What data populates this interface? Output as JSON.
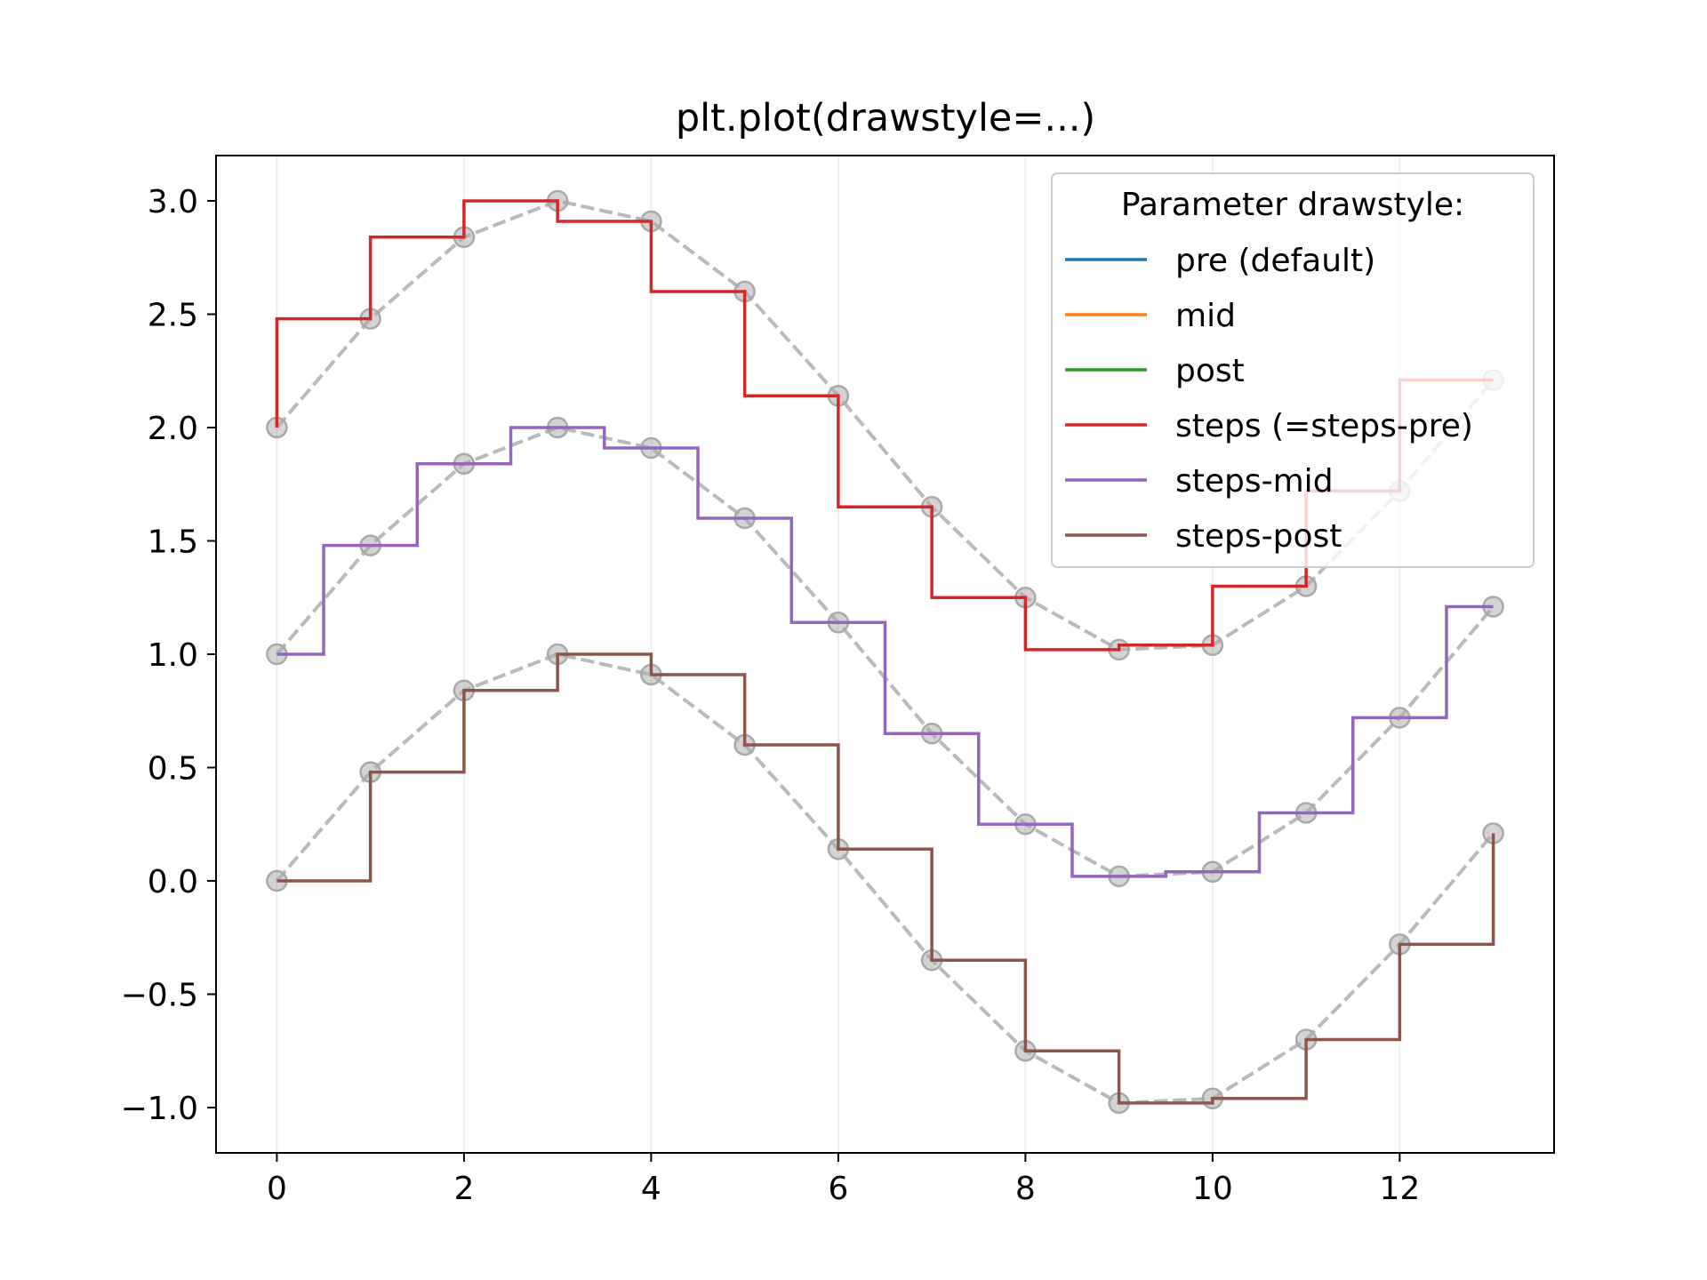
{
  "chart_data": {
    "type": "line",
    "title": "plt.plot(drawstyle=...)",
    "xlabel": "",
    "ylabel": "",
    "xlim": [
      -0.65,
      13.65
    ],
    "ylim": [
      -1.2,
      3.2
    ],
    "xticks": [
      0,
      2,
      4,
      6,
      8,
      10,
      12
    ],
    "xtick_labels": [
      "0",
      "2",
      "4",
      "6",
      "8",
      "10",
      "12"
    ],
    "yticks": [
      -1.0,
      -0.5,
      0.0,
      0.5,
      1.0,
      1.5,
      2.0,
      2.5,
      3.0
    ],
    "ytick_labels": [
      "−1.0",
      "−0.5",
      "0.0",
      "0.5",
      "1.0",
      "1.5",
      "2.0",
      "2.5",
      "3.0"
    ],
    "x_grid": true,
    "y_grid": false,
    "legend": {
      "title": "Parameter drawstyle:",
      "placement": "upper right",
      "entries": [
        {
          "label": "pre (default)",
          "color": "#1f77b4"
        },
        {
          "label": "mid",
          "color": "#ff7f0e"
        },
        {
          "label": "post",
          "color": "#2ca02c"
        },
        {
          "label": "steps (=steps-pre)",
          "color": "#d62728"
        },
        {
          "label": "steps-mid",
          "color": "#9467bd"
        },
        {
          "label": "steps-post",
          "color": "#8c564b"
        }
      ]
    },
    "x": [
      0,
      1,
      2,
      3,
      4,
      5,
      6,
      7,
      8,
      9,
      10,
      11,
      12,
      13
    ],
    "series": [
      {
        "drawstyle": "steps-pre",
        "color": "#d62728",
        "values": [
          2.0,
          2.48,
          2.84,
          3.0,
          2.91,
          2.6,
          2.14,
          1.65,
          1.25,
          1.02,
          1.04,
          1.3,
          1.72,
          2.21
        ]
      },
      {
        "drawstyle": "steps-mid",
        "color": "#9467bd",
        "values": [
          1.0,
          1.48,
          1.84,
          2.0,
          1.91,
          1.6,
          1.14,
          0.65,
          0.25,
          0.02,
          0.04,
          0.3,
          0.72,
          1.21
        ]
      },
      {
        "drawstyle": "steps-post",
        "color": "#8c564b",
        "values": [
          0.0,
          0.48,
          0.84,
          1.0,
          0.91,
          0.6,
          0.14,
          -0.35,
          -0.75,
          -0.98,
          -0.96,
          -0.7,
          -0.28,
          0.21
        ]
      }
    ],
    "reference_lines": {
      "color": "#a9a9a9",
      "style": "dashed",
      "markers": "circle"
    }
  }
}
